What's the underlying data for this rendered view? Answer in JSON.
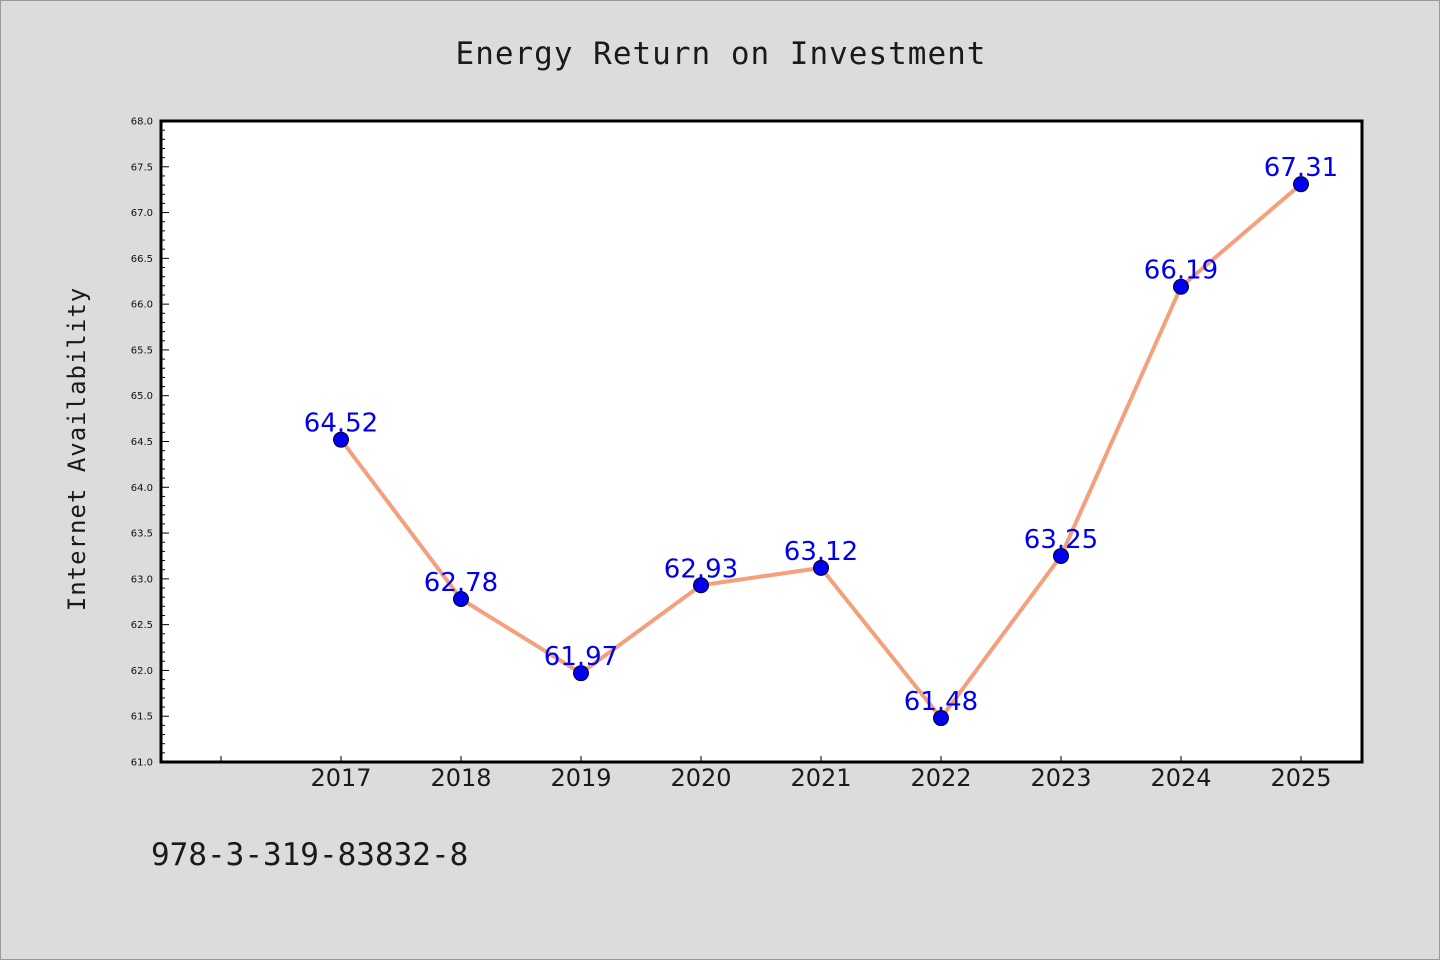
{
  "chart_data": {
    "type": "line",
    "title": "Energy Return on Investment",
    "xlabel": "",
    "ylabel": "Internet Availability",
    "categories": [
      "2017",
      "2018",
      "2019",
      "2020",
      "2021",
      "2022",
      "2023",
      "2024",
      "2025"
    ],
    "series": [
      {
        "values": [
          64.52,
          62.78,
          61.97,
          62.93,
          63.12,
          61.48,
          63.25,
          66.19,
          67.31
        ],
        "data_labels": [
          "64.52",
          "62.78",
          "61.97",
          "62.93",
          "63.12",
          "61.48",
          "63.25",
          "66.19",
          "67.31"
        ]
      }
    ],
    "ylim": [
      61.0,
      68.0
    ],
    "yticks": [
      "61.0",
      "61.5",
      "62.0",
      "62.5",
      "63.0",
      "63.5",
      "64.0",
      "64.5",
      "65.0",
      "65.5",
      "66.0",
      "66.5",
      "67.0",
      "67.5",
      "68.0"
    ],
    "grid": false,
    "legend": "none",
    "colors": {
      "line": "#f4a07c",
      "marker": "#0000ee",
      "data_label": "#0000ee",
      "plot_background": "#ffffff",
      "figure_background": "#dcdcdc"
    }
  },
  "footer": {
    "isbn": "978-3-319-83832-8"
  }
}
